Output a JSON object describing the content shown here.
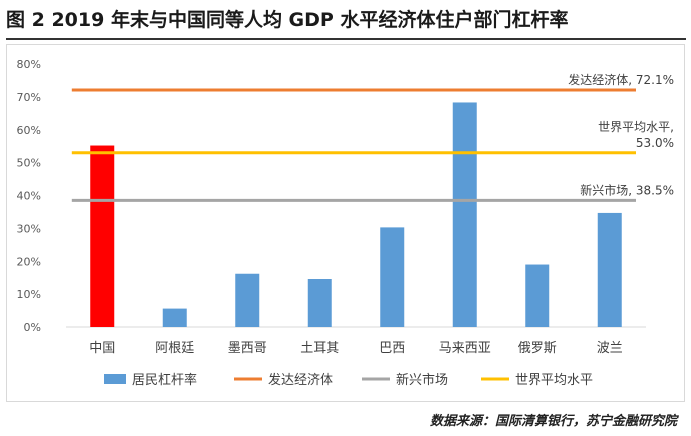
{
  "figure": {
    "title": "图 2  2019 年末与中国同等人均 GDP 水平经济体住户部门杠杆率",
    "source": "数据来源：国际清算银行，苏宁金融研究院"
  },
  "chart_data": {
    "type": "bar",
    "title": "",
    "xlabel": "",
    "ylabel": "",
    "ylim": [
      0,
      80
    ],
    "y_unit": "%",
    "y_ticks": [
      0,
      10,
      20,
      30,
      40,
      50,
      60,
      70,
      80
    ],
    "grid": false,
    "categories": [
      "中国",
      "阿根廷",
      "墨西哥",
      "土耳其",
      "巴西",
      "马来西亚",
      "俄罗斯",
      "波兰"
    ],
    "series": [
      {
        "name": "居民杠杆率",
        "values": [
          55.2,
          5.6,
          16.2,
          14.6,
          30.3,
          68.3,
          19.0,
          34.7
        ],
        "color": "#5b9bd5",
        "highlight": {
          "category": "中国",
          "color": "#ff0000"
        }
      }
    ],
    "reference_lines": [
      {
        "name": "发达经济体",
        "value": 72.1,
        "color": "#ed7d31",
        "label": "发达经济体, 72.1%"
      },
      {
        "name": "新兴市场",
        "value": 38.5,
        "color": "#a5a5a5",
        "label": "新兴市场, 38.5%"
      },
      {
        "name": "世界平均水平",
        "value": 53.0,
        "color": "#ffc000",
        "label_lines": [
          "世界平均水平,",
          "53.0%"
        ]
      }
    ],
    "legend": {
      "placement": "bottom",
      "items": [
        {
          "name": "居民杠杆率",
          "color": "#5b9bd5",
          "kind": "bar"
        },
        {
          "name": "发达经济体",
          "color": "#ed7d31",
          "kind": "line"
        },
        {
          "name": "新兴市场",
          "color": "#a5a5a5",
          "kind": "line"
        },
        {
          "name": "世界平均水平",
          "color": "#ffc000",
          "kind": "line"
        }
      ]
    }
  }
}
